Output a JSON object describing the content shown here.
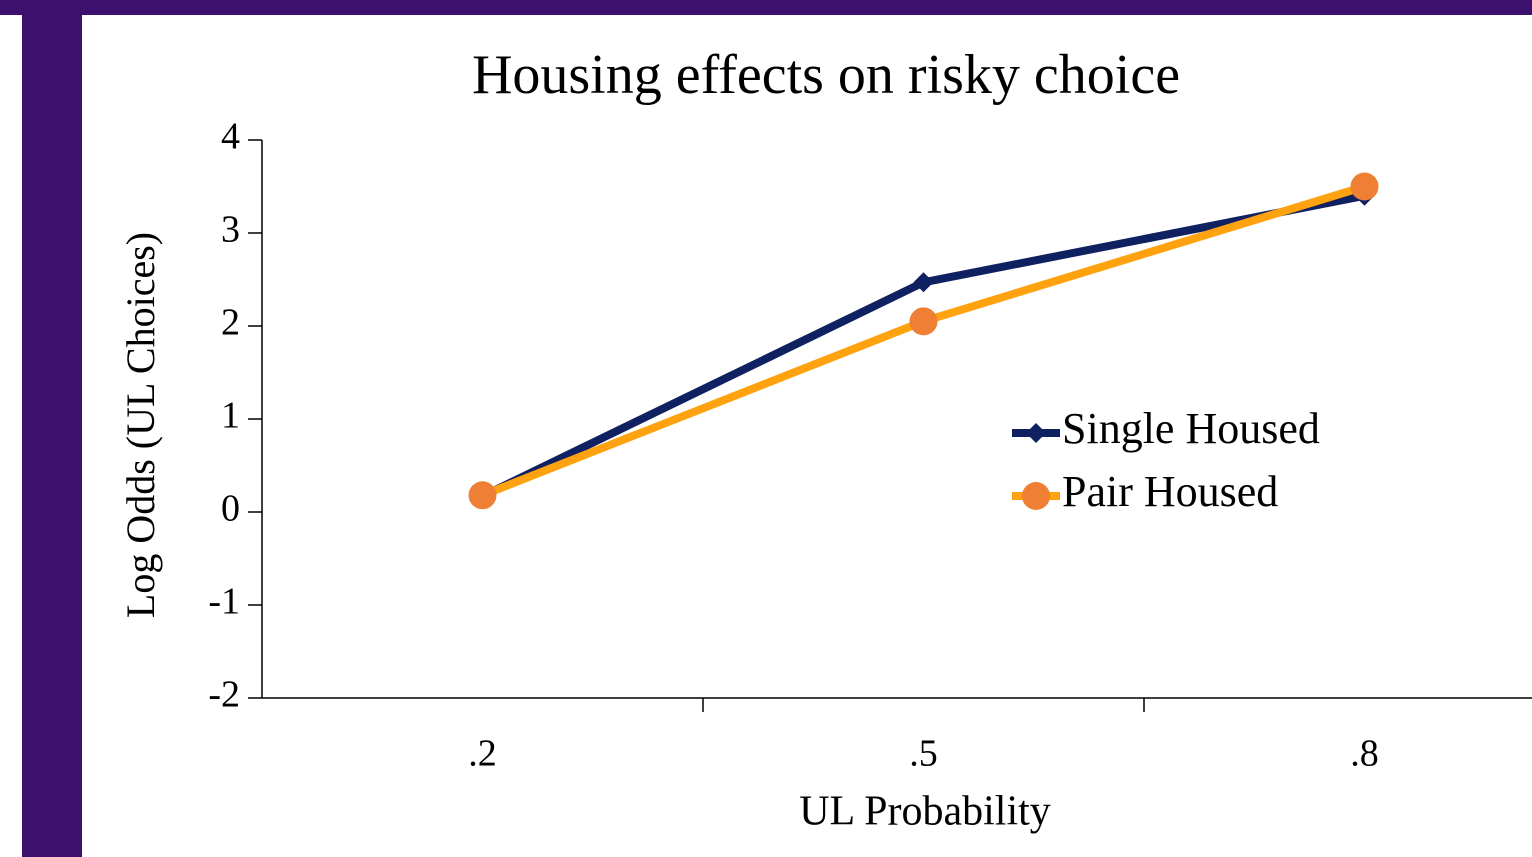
{
  "chart_data": {
    "type": "line",
    "title": "Housing effects on risky choice",
    "x_label": "UL Probability",
    "y_label": "Log Odds (UL Choices)",
    "categories": [
      ".2",
      ".5",
      ".8"
    ],
    "series": [
      {
        "name": "Single Housed",
        "color": "#0f2160",
        "marker": "diamond",
        "marker_color": "#0f2160",
        "values": [
          0.17,
          2.47,
          3.4
        ]
      },
      {
        "name": "Pair Housed",
        "color": "#ffa20f",
        "marker": "circle",
        "marker_color": "#ee7f35",
        "values": [
          0.18,
          2.05,
          3.5
        ]
      }
    ],
    "ylim": [
      -2,
      4
    ],
    "yticks": [
      -2,
      -1,
      0,
      1,
      2,
      3,
      4
    ],
    "legend": "right"
  }
}
